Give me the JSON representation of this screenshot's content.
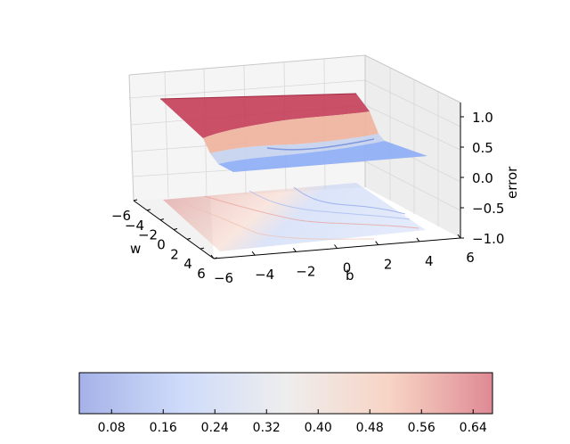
{
  "chart_data": {
    "type": "surface-3d",
    "axes": {
      "x": {
        "label": "w",
        "range": [
          -6,
          6
        ],
        "ticks": [
          "−6",
          "−4",
          "−2",
          "0",
          "2",
          "4",
          "6"
        ]
      },
      "y": {
        "label": "b",
        "range": [
          -6,
          6
        ],
        "ticks": [
          "−6",
          "−4",
          "−2",
          "0",
          "2",
          "4",
          "6"
        ]
      },
      "z": {
        "label": "error",
        "range": [
          -1.0,
          1.0
        ],
        "ticks": [
          "−1.0",
          "−0.5",
          "0.0",
          "0.5",
          "1.0"
        ]
      }
    },
    "surface": {
      "z_at_w_-6": 0.65,
      "z_at_w_6": 0.05,
      "transition": "steep drop near w ≈ −2 to 0, shallow trough along b ≈ 0 on the low plateau"
    },
    "contour_floor": {
      "z": -1.0,
      "pattern": "filled contours projected onto floor"
    },
    "colormap": "coolwarm",
    "colorbar": {
      "ticks": [
        "0.08",
        "0.16",
        "0.24",
        "0.32",
        "0.40",
        "0.48",
        "0.56",
        "0.64"
      ],
      "tick_values": [
        0.08,
        0.16,
        0.24,
        0.32,
        0.4,
        0.48,
        0.56,
        0.64
      ],
      "range": [
        0.03,
        0.67
      ],
      "orientation": "horizontal"
    },
    "grid": true
  }
}
